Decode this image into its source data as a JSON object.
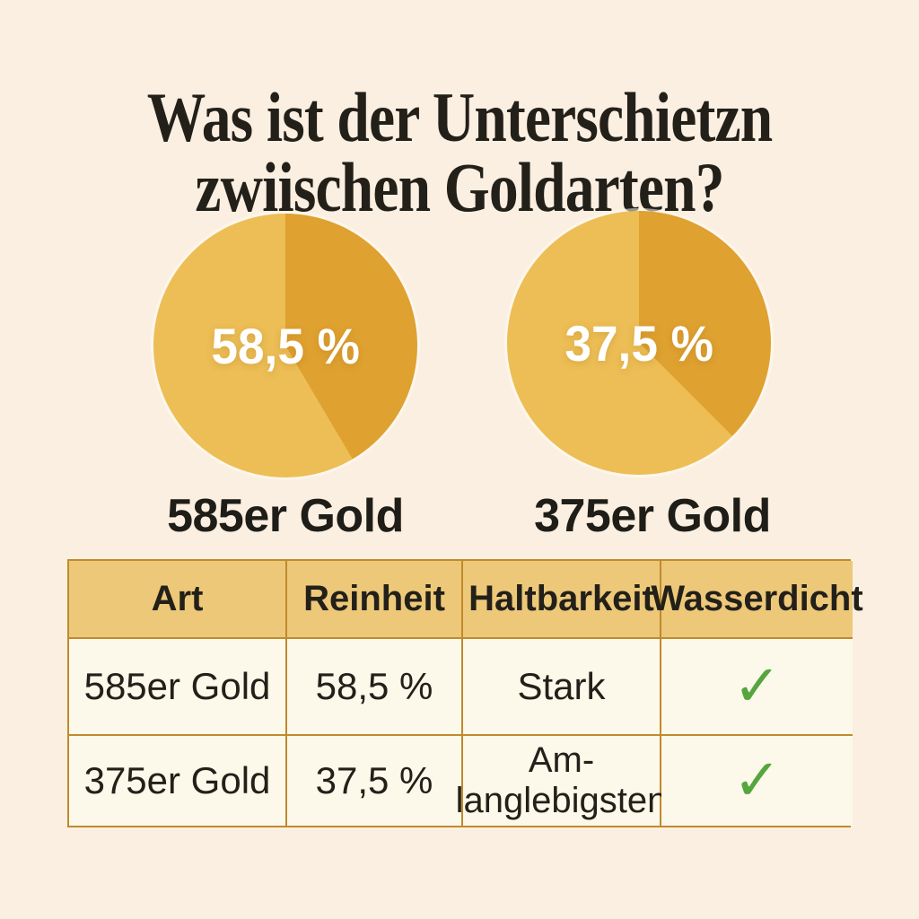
{
  "title": {
    "line1": "Was ist der Unterschietzn",
    "line2": "zwiischen Goldarten?"
  },
  "chart_data": [
    {
      "type": "pie",
      "title": "585er Gold",
      "center_label": "58,5 %",
      "segments": [
        {
          "value": 41.5,
          "color": "#DFA12F"
        },
        {
          "value": 58.5,
          "color": "#EDBE55"
        }
      ],
      "start_angle_deg": 0,
      "legend_position": "none"
    },
    {
      "type": "pie",
      "title": "375er Gold",
      "center_label": "37,5 %",
      "segments": [
        {
          "value": 37.5,
          "color": "#DFA12F"
        },
        {
          "value": 62.5,
          "color": "#EDBE55"
        }
      ],
      "start_angle_deg": 0,
      "legend_position": "none"
    }
  ],
  "table": {
    "headers": [
      "Art",
      "Reinheit",
      "Haltbarkeit",
      "Wasserdicht"
    ],
    "rows": [
      [
        "585er Gold",
        "58,5 %",
        "Stark",
        "✓"
      ],
      [
        "375er Gold",
        "37,5 %",
        "Am-\nlanglebigsten",
        "✓"
      ]
    ]
  },
  "colors": {
    "background": "#FBEFE1",
    "pie_light": "#EDBE55",
    "pie_dark": "#DFA12F",
    "pie_label_text": "#FFFFFF",
    "table_header_bg": "#EDC878",
    "table_row_bg": "#FCF8EA",
    "table_border": "#C08A2E",
    "check_green": "#55A63C",
    "text_dark": "#23201A"
  }
}
